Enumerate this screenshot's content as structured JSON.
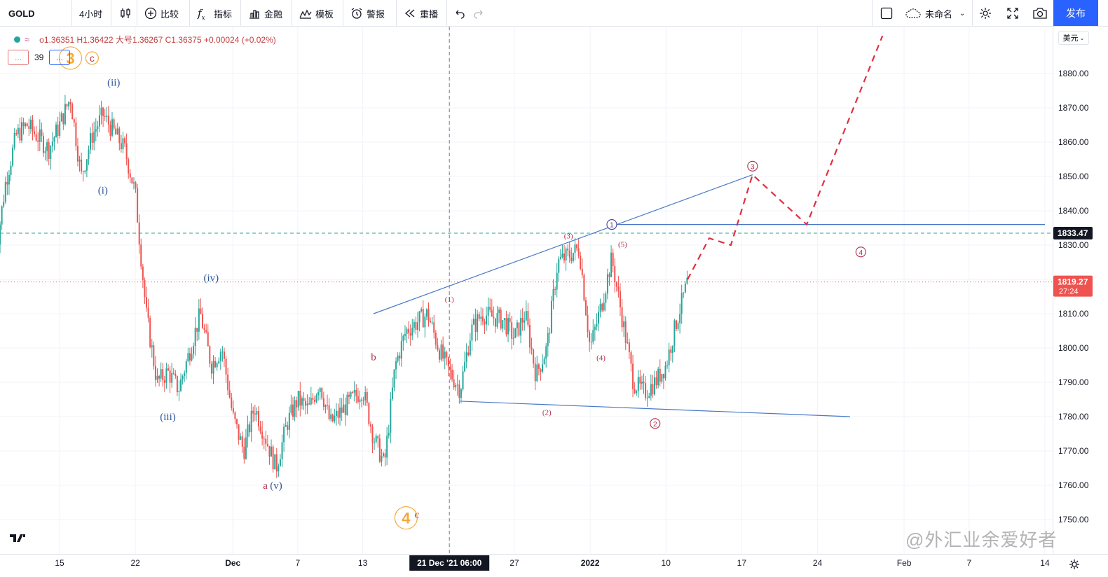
{
  "toolbar": {
    "symbol": "GOLD",
    "interval": "4小时",
    "compare": "比较",
    "indicators": "指标",
    "finance": "金融",
    "templates": "模板",
    "alert": "警报",
    "replay": "重播",
    "layout_name": "未命名",
    "publish": "发布"
  },
  "legend": {
    "ohlc": "o1.36351 H1.36422 大号1.36267 C1.36375 +0.00024 (+0.02%)",
    "btn_left": "...",
    "count": "39",
    "btn_right": "..."
  },
  "axis": {
    "currency": "美元",
    "current_price_label": "1833.47",
    "last_price_label": "1819.27",
    "countdown": "27:24",
    "crosshair_time": "21 Dec '21  06:00"
  },
  "watermark": "@外汇业余爱好者",
  "colors": {
    "up": "#26a69a",
    "down": "#ef5350",
    "wave_blue": "#2b5797",
    "wave_red": "#b22d4b",
    "wave_orange": "#f4a93b",
    "trendline": "#4a78c8",
    "projection": "#e03040",
    "accent": "#2962ff"
  },
  "chart_data": {
    "type": "candlestick",
    "title": "",
    "ylabel": "",
    "ylim": [
      1745,
      1890
    ],
    "yticks": [
      1750,
      1760,
      1770,
      1780,
      1790,
      1800,
      1810,
      1820,
      1830,
      1840,
      1850,
      1860,
      1870,
      1880
    ],
    "xticks": [
      "15",
      "22",
      "Dec",
      "7",
      "13",
      "21 Dec '21  06:00",
      "27",
      "2022",
      "10",
      "17",
      "24",
      "Feb",
      "7",
      "14"
    ],
    "close_path": [
      {
        "x": "2021-11-09",
        "y": 1825
      },
      {
        "x": "2021-11-10",
        "y": 1848
      },
      {
        "x": "2021-11-11",
        "y": 1862
      },
      {
        "x": "2021-11-12",
        "y": 1865
      },
      {
        "x": "2021-11-14",
        "y": 1858
      },
      {
        "x": "2021-11-15",
        "y": 1865
      },
      {
        "x": "2021-11-16",
        "y": 1873
      },
      {
        "x": "2021-11-17",
        "y": 1850
      },
      {
        "x": "2021-11-18",
        "y": 1862
      },
      {
        "x": "2021-11-19",
        "y": 1868
      },
      {
        "x": "2021-11-21",
        "y": 1858
      },
      {
        "x": "2021-11-22",
        "y": 1845
      },
      {
        "x": "2021-11-23",
        "y": 1810
      },
      {
        "x": "2021-11-24",
        "y": 1790
      },
      {
        "x": "2021-11-25",
        "y": 1793
      },
      {
        "x": "2021-11-26",
        "y": 1788
      },
      {
        "x": "2021-11-28",
        "y": 1810
      },
      {
        "x": "2021-11-29",
        "y": 1795
      },
      {
        "x": "2021-11-30",
        "y": 1800
      },
      {
        "x": "2021-12-01",
        "y": 1780
      },
      {
        "x": "2021-12-02",
        "y": 1770
      },
      {
        "x": "2021-12-03",
        "y": 1783
      },
      {
        "x": "2021-12-05",
        "y": 1765
      },
      {
        "x": "2021-12-06",
        "y": 1778
      },
      {
        "x": "2021-12-07",
        "y": 1785
      },
      {
        "x": "2021-12-08",
        "y": 1782
      },
      {
        "x": "2021-12-09",
        "y": 1790
      },
      {
        "x": "2021-12-10",
        "y": 1778
      },
      {
        "x": "2021-12-12",
        "y": 1785
      },
      {
        "x": "2021-12-13",
        "y": 1788
      },
      {
        "x": "2021-12-14",
        "y": 1774
      },
      {
        "x": "2021-12-15",
        "y": 1766
      },
      {
        "x": "2021-12-16",
        "y": 1795
      },
      {
        "x": "2021-12-17",
        "y": 1805
      },
      {
        "x": "2021-12-19",
        "y": 1810
      },
      {
        "x": "2021-12-20",
        "y": 1800
      },
      {
        "x": "2021-12-21",
        "y": 1793
      },
      {
        "x": "2021-12-22",
        "y": 1788
      },
      {
        "x": "2021-12-23",
        "y": 1805
      },
      {
        "x": "2021-12-24",
        "y": 1810
      },
      {
        "x": "2021-12-26",
        "y": 1808
      },
      {
        "x": "2021-12-27",
        "y": 1803
      },
      {
        "x": "2021-12-28",
        "y": 1810
      },
      {
        "x": "2021-12-29",
        "y": 1792
      },
      {
        "x": "2021-12-30",
        "y": 1800
      },
      {
        "x": "2021-12-31",
        "y": 1825
      },
      {
        "x": "2022-01-02",
        "y": 1829
      },
      {
        "x": "2022-01-03",
        "y": 1800
      },
      {
        "x": "2022-01-04",
        "y": 1812
      },
      {
        "x": "2022-01-05",
        "y": 1826
      },
      {
        "x": "2022-01-06",
        "y": 1808
      },
      {
        "x": "2022-01-07",
        "y": 1790
      },
      {
        "x": "2022-01-08",
        "y": 1787
      },
      {
        "x": "2022-01-09",
        "y": 1790
      },
      {
        "x": "2022-01-10",
        "y": 1795
      },
      {
        "x": "2022-01-11",
        "y": 1808
      },
      {
        "x": "2022-01-12",
        "y": 1819.27
      }
    ],
    "price_lines": [
      {
        "label": "1833.47",
        "y": 1833.47
      },
      {
        "label": "1819.27",
        "y": 1819.27
      }
    ],
    "trendlines": [
      {
        "x1": "2021-12-14",
        "y1": 1810,
        "x2": "2022-01-18",
        "y2": 1850.5
      },
      {
        "x1": "2021-12-22",
        "y1": 1784.5,
        "x2": "2022-01-27",
        "y2": 1780
      },
      {
        "x1": "2022-01-05",
        "y1": 1836,
        "x2": "2022-02-14",
        "y2": 1836
      }
    ],
    "projection": [
      {
        "x": "2022-01-12",
        "y": 1820
      },
      {
        "x": "2022-01-14",
        "y": 1832
      },
      {
        "x": "2022-01-16",
        "y": 1830
      },
      {
        "x": "2022-01-18",
        "y": 1850.5
      },
      {
        "x": "2022-01-23",
        "y": 1836
      },
      {
        "x": "2022-01-30",
        "y": 1891
      }
    ],
    "annotations": [
      {
        "text": "3",
        "x": "2021-11-16",
        "y": 1884.5,
        "style": "orange-big-circle"
      },
      {
        "text": "c",
        "x": "2021-11-18",
        "y": 1884.5,
        "style": "orange-small-circle"
      },
      {
        "text": "(ii)",
        "x": "2021-11-20",
        "y": 1877.5,
        "style": "blue"
      },
      {
        "text": "(i)",
        "x": "2021-11-19",
        "y": 1846,
        "style": "blue"
      },
      {
        "text": "(iv)",
        "x": "2021-11-29",
        "y": 1820.5,
        "style": "blue"
      },
      {
        "text": "(iii)",
        "x": "2021-11-25",
        "y": 1780,
        "style": "blue"
      },
      {
        "text": "a",
        "x": "2021-12-04",
        "y": 1760,
        "style": "red"
      },
      {
        "text": "(v)",
        "x": "2021-12-05",
        "y": 1760,
        "style": "blue"
      },
      {
        "text": "b",
        "x": "2021-12-14",
        "y": 1797.5,
        "style": "red"
      },
      {
        "text": "c",
        "x": "2021-12-18",
        "y": 1751.5,
        "style": "red"
      },
      {
        "text": "4",
        "x": "2021-12-17",
        "y": 1750.5,
        "style": "orange-big-circle"
      },
      {
        "text": "(1)",
        "x": "2021-12-21",
        "y": 1814.5,
        "style": "red-small"
      },
      {
        "text": "(2)",
        "x": "2021-12-30",
        "y": 1781.5,
        "style": "red-small"
      },
      {
        "text": "(3)",
        "x": "2022-01-01",
        "y": 1833,
        "style": "red-small"
      },
      {
        "text": "(4)",
        "x": "2022-01-04",
        "y": 1797.5,
        "style": "red-small"
      },
      {
        "text": "(5)",
        "x": "2022-01-06",
        "y": 1830.5,
        "style": "red-small"
      },
      {
        "text": "1",
        "x": "2022-01-05",
        "y": 1836,
        "style": "blue-circle"
      },
      {
        "text": "2",
        "x": "2022-01-09",
        "y": 1778,
        "style": "red-circle"
      },
      {
        "text": "3",
        "x": "2022-01-18",
        "y": 1853,
        "style": "red-circle"
      },
      {
        "text": "4",
        "x": "2022-01-28",
        "y": 1828,
        "style": "red-circle"
      }
    ]
  }
}
